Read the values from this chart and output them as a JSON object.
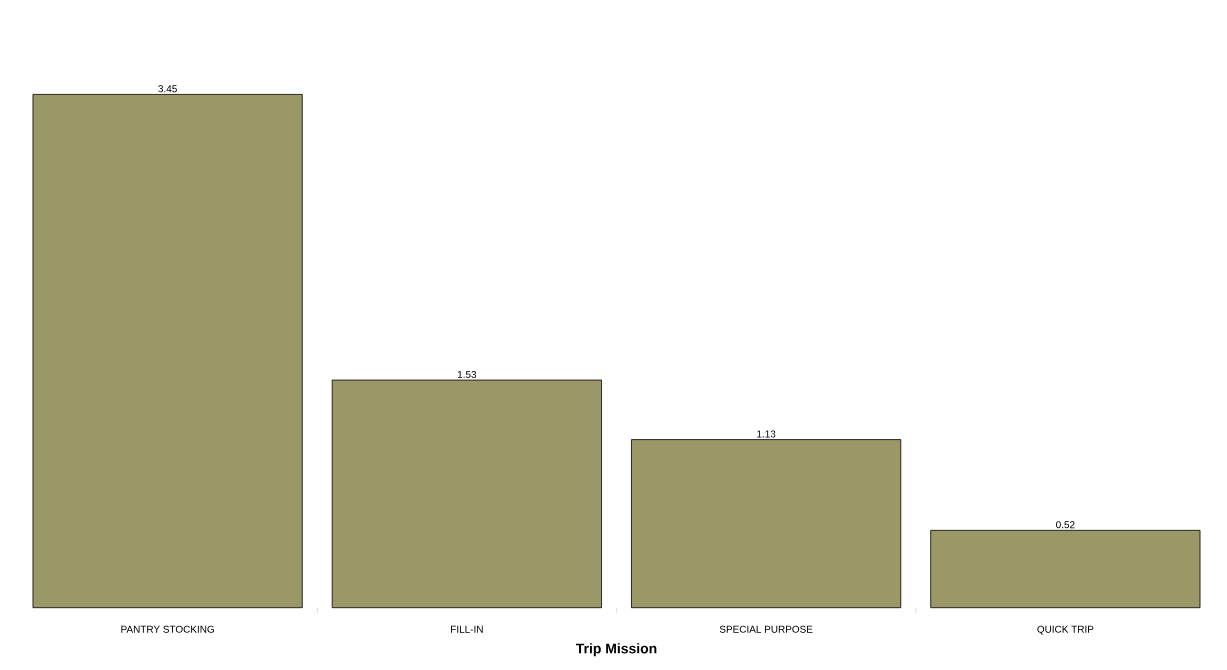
{
  "chart_data": {
    "type": "bar",
    "xlabel": "Trip Mission",
    "categories": [
      "PANTRY STOCKING",
      "FILL-IN",
      "SPECIAL PURPOSE",
      "QUICK TRIP"
    ],
    "values": [
      3.45,
      1.53,
      1.13,
      0.52
    ],
    "color": "#9b9868",
    "tick_labels": "x",
    "data_labels": true
  }
}
